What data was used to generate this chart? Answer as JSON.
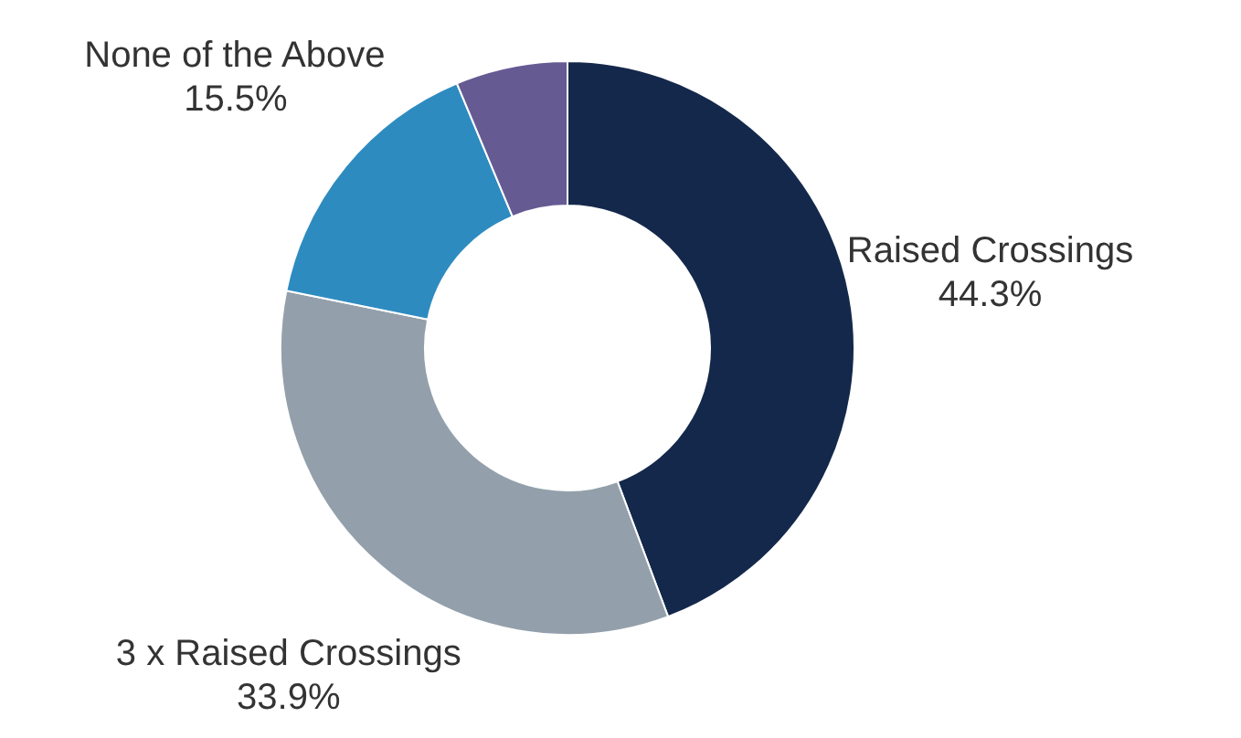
{
  "chart_data": {
    "type": "donut",
    "categories": [
      "Raised Crossings",
      "3 x Raised Crossings",
      "None of the Above",
      null
    ],
    "values": [
      44.3,
      33.9,
      15.5,
      6.3
    ],
    "value_labels": [
      "44.3%",
      "33.9%",
      "15.5%",
      null
    ],
    "colors": [
      "#14284b",
      "#93a0ab",
      "#2e8bc0",
      "#665a93"
    ]
  }
}
